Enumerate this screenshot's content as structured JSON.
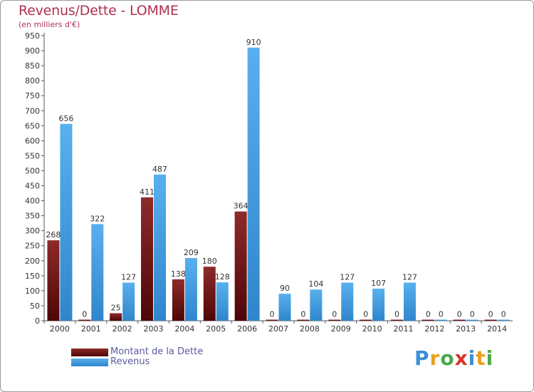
{
  "header": {
    "title": "Revenus/Dette - LOMME",
    "subtitle": "(en milliers d'€)"
  },
  "legend": {
    "debt_label": "Montant de la Dette",
    "revenue_label": "Revenus"
  },
  "logo": {
    "text": "Proxiti"
  },
  "colors": {
    "debt": "#7a1a1a",
    "debt_dark": "#4e0a0a",
    "revenue": "#4fa9e8",
    "revenue_dark": "#2f8ad0",
    "axis_text": "#333333"
  },
  "chart_data": {
    "type": "bar",
    "title": "Revenus/Dette - LOMME",
    "ylabel": "(en milliers d'€)",
    "xlabel": "",
    "ylim": [
      0,
      950
    ],
    "ytick_step": 50,
    "grid": false,
    "categories": [
      "2000",
      "2001",
      "2002",
      "2003",
      "2004",
      "2005",
      "2006",
      "2007",
      "2008",
      "2009",
      "2010",
      "2011",
      "2012",
      "2013",
      "2014"
    ],
    "series": [
      {
        "name": "Montant de la Dette",
        "values": [
          268,
          0,
          25,
          411,
          138,
          180,
          364,
          0,
          0,
          0,
          0,
          0,
          0,
          0,
          0
        ]
      },
      {
        "name": "Revenus",
        "values": [
          656,
          322,
          127,
          487,
          209,
          128,
          910,
          90,
          104,
          127,
          107,
          127,
          0,
          0,
          0
        ]
      }
    ]
  }
}
